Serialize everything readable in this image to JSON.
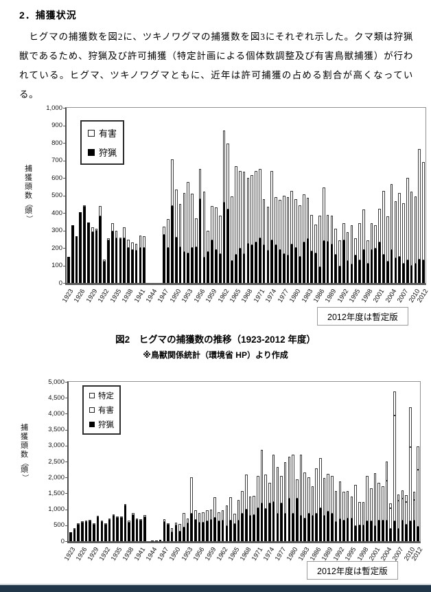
{
  "page": {
    "heading": "2．捕獲状況",
    "paragraph": "　ヒグマの捕獲数を図2に、ツキノワグマの捕獲数を図3にそれぞれ示した。クマ類は狩猟獣であるため、狩猟及び許可捕獲（特定計画による個体数調整及び有害鳥獣捕獲）が行われている。ヒグマ、ツキノワグマともに、近年は許可捕獲の占める割合が高くなっている。"
  },
  "figure2": {
    "caption": "図2　ヒグマの捕獲数の推移（1923-2012 年度）",
    "subcaption": "※鳥獣関係統計（環境省 HP）より作成",
    "provisional_note": "2012年度は暫定版"
  },
  "figure3": {
    "provisional_note": "2012年度は暫定版"
  },
  "footer_bar_color": "#223649",
  "chart_data": [
    {
      "type": "bar",
      "stacked": true,
      "title": "図2　ヒグマの捕獲数の推移（1923-2012 年度）",
      "ylabel": "捕獲頭数（頭）",
      "xlabel": "",
      "ylim": [
        0,
        1000
      ],
      "ytick_step": 100,
      "yticklabels": [
        "0",
        "100",
        "200",
        "300",
        "400",
        "500",
        "600",
        "700",
        "800",
        "900",
        "1,000"
      ],
      "x_range": [
        1923,
        2012
      ],
      "xticklabels": [
        "1923",
        "1926",
        "1929",
        "1932",
        "1935",
        "1938",
        "1941",
        "1944",
        "1947",
        "1950",
        "1953",
        "1956",
        "1959",
        "1962",
        "1965",
        "1968",
        "1971",
        "1974",
        "1977",
        "1980",
        "1983",
        "1986",
        "1989",
        "1992",
        "1995",
        "1998",
        "2001",
        "2004",
        "2007",
        "2010",
        "2012"
      ],
      "legend_position": "upper-left-inside",
      "grid": false,
      "annotation": "2012年度は暫定版",
      "series": [
        {
          "name": "狩猟",
          "color": "#000000",
          "values": [
            150,
            330,
            265,
            405,
            435,
            345,
            290,
            300,
            380,
            120,
            245,
            295,
            255,
            250,
            255,
            200,
            190,
            185,
            200,
            200,
            0,
            0,
            0,
            0,
            275,
            200,
            440,
            260,
            205,
            175,
            170,
            200,
            205,
            480,
            145,
            175,
            245,
            190,
            165,
            460,
            420,
            125,
            160,
            195,
            165,
            225,
            215,
            230,
            255,
            215,
            185,
            245,
            215,
            190,
            165,
            155,
            220,
            200,
            150,
            230,
            250,
            180,
            170,
            90,
            240,
            235,
            220,
            160,
            95,
            245,
            125,
            105,
            155,
            130,
            190,
            110,
            190,
            195,
            230,
            160,
            120,
            190,
            140,
            150,
            110,
            130,
            100,
            110,
            135,
            130
          ]
        },
        {
          "name": "有害",
          "color": "#ffffff",
          "values": [
            0,
            0,
            0,
            0,
            5,
            0,
            28,
            8,
            60,
            12,
            10,
            46,
            45,
            10,
            63,
            47,
            40,
            40,
            70,
            65,
            0,
            0,
            0,
            0,
            45,
            165,
            267,
            273,
            247,
            340,
            405,
            310,
            165,
            170,
            375,
            125,
            195,
            240,
            220,
            410,
            375,
            370,
            505,
            445,
            470,
            375,
            400,
            410,
            395,
            265,
            250,
            395,
            275,
            285,
            335,
            335,
            305,
            280,
            295,
            275,
            235,
            210,
            165,
            295,
            305,
            155,
            165,
            150,
            150,
            95,
            165,
            225,
            100,
            210,
            230,
            135,
            150,
            135,
            195,
            365,
            260,
            375,
            325,
            365,
            345,
            470,
            420,
            385,
            630,
            560
          ]
        }
      ]
    },
    {
      "type": "bar",
      "stacked": true,
      "title": "",
      "ylabel": "捕獲頭数（頭）",
      "xlabel": "",
      "ylim": [
        0,
        5000
      ],
      "ytick_step": 500,
      "yticklabels": [
        "0",
        "500",
        "1,000",
        "1,500",
        "2,000",
        "2,500",
        "3,000",
        "3,500",
        "4,000",
        "4,500",
        "5,000"
      ],
      "x_range": [
        1923,
        2012
      ],
      "xticklabels": [
        "1923",
        "1926",
        "1929",
        "1932",
        "1935",
        "1938",
        "1941",
        "1944",
        "1947",
        "1950",
        "1953",
        "1956",
        "1959",
        "1962",
        "1965",
        "1968",
        "1971",
        "1974",
        "1977",
        "1980",
        "1983",
        "1986",
        "1989",
        "1992",
        "1995",
        "1998",
        "2001",
        "2004",
        "2007",
        "2010",
        "2012"
      ],
      "legend_position": "upper-left-inside",
      "grid": false,
      "annotation": "2012年度は暫定版",
      "series": [
        {
          "name": "狩猟",
          "color": "#000000",
          "values": [
            290,
            370,
            520,
            590,
            600,
            630,
            515,
            755,
            600,
            515,
            665,
            800,
            725,
            740,
            1130,
            575,
            820,
            670,
            650,
            750,
            0,
            30,
            30,
            40,
            600,
            520,
            270,
            500,
            310,
            440,
            570,
            870,
            660,
            580,
            580,
            620,
            660,
            730,
            620,
            640,
            480,
            650,
            540,
            650,
            860,
            1000,
            790,
            825,
            1040,
            1185,
            1005,
            1185,
            1220,
            860,
            1185,
            860,
            1330,
            860,
            1330,
            790,
            720,
            860,
            790,
            860,
            1040,
            790,
            930,
            860,
            610,
            680,
            650,
            720,
            720,
            470,
            500,
            500,
            620,
            630,
            480,
            650,
            650,
            650,
            380,
            620,
            380,
            650,
            520,
            620,
            650,
            450
          ]
        },
        {
          "name": "有害",
          "color": "#ffffff",
          "values": [
            0,
            10,
            10,
            10,
            10,
            10,
            15,
            15,
            20,
            15,
            15,
            40,
            15,
            40,
            20,
            75,
            60,
            30,
            50,
            70,
            0,
            0,
            0,
            0,
            100,
            30,
            150,
            90,
            220,
            450,
            150,
            1140,
            320,
            300,
            320,
            360,
            330,
            660,
            280,
            340,
            650,
            720,
            320,
            640,
            720,
            1085,
            610,
            595,
            1010,
            1680,
            1080,
            645,
            1500,
            1465,
            865,
            1610,
            1320,
            1860,
            610,
            1930,
            1435,
            1150,
            935,
            1430,
            1575,
            1185,
            1190,
            1190,
            970,
            1190,
            895,
            860,
            680,
            1305,
            720,
            720,
            1425,
            1040,
            1660,
            1180,
            1075,
            1245,
            655,
            3325,
            895,
            695,
            715,
            2325,
            645,
            1790
          ]
        },
        {
          "name": "特定",
          "color": "#ffffff",
          "values": [
            0,
            0,
            0,
            0,
            0,
            0,
            0,
            0,
            0,
            0,
            0,
            0,
            0,
            0,
            0,
            0,
            0,
            0,
            0,
            0,
            0,
            0,
            0,
            0,
            0,
            0,
            0,
            0,
            0,
            0,
            0,
            0,
            0,
            0,
            0,
            0,
            0,
            0,
            0,
            0,
            0,
            0,
            0,
            0,
            0,
            0,
            0,
            0,
            0,
            0,
            0,
            0,
            0,
            0,
            0,
            0,
            0,
            0,
            0,
            0,
            0,
            0,
            0,
            0,
            0,
            0,
            0,
            0,
            0,
            0,
            0,
            0,
            0,
            0,
            0,
            0,
            0,
            0,
            0,
            0,
            0,
            600,
            150,
            760,
            200,
            250,
            200,
            1260,
            250,
            740
          ]
        }
      ]
    }
  ]
}
